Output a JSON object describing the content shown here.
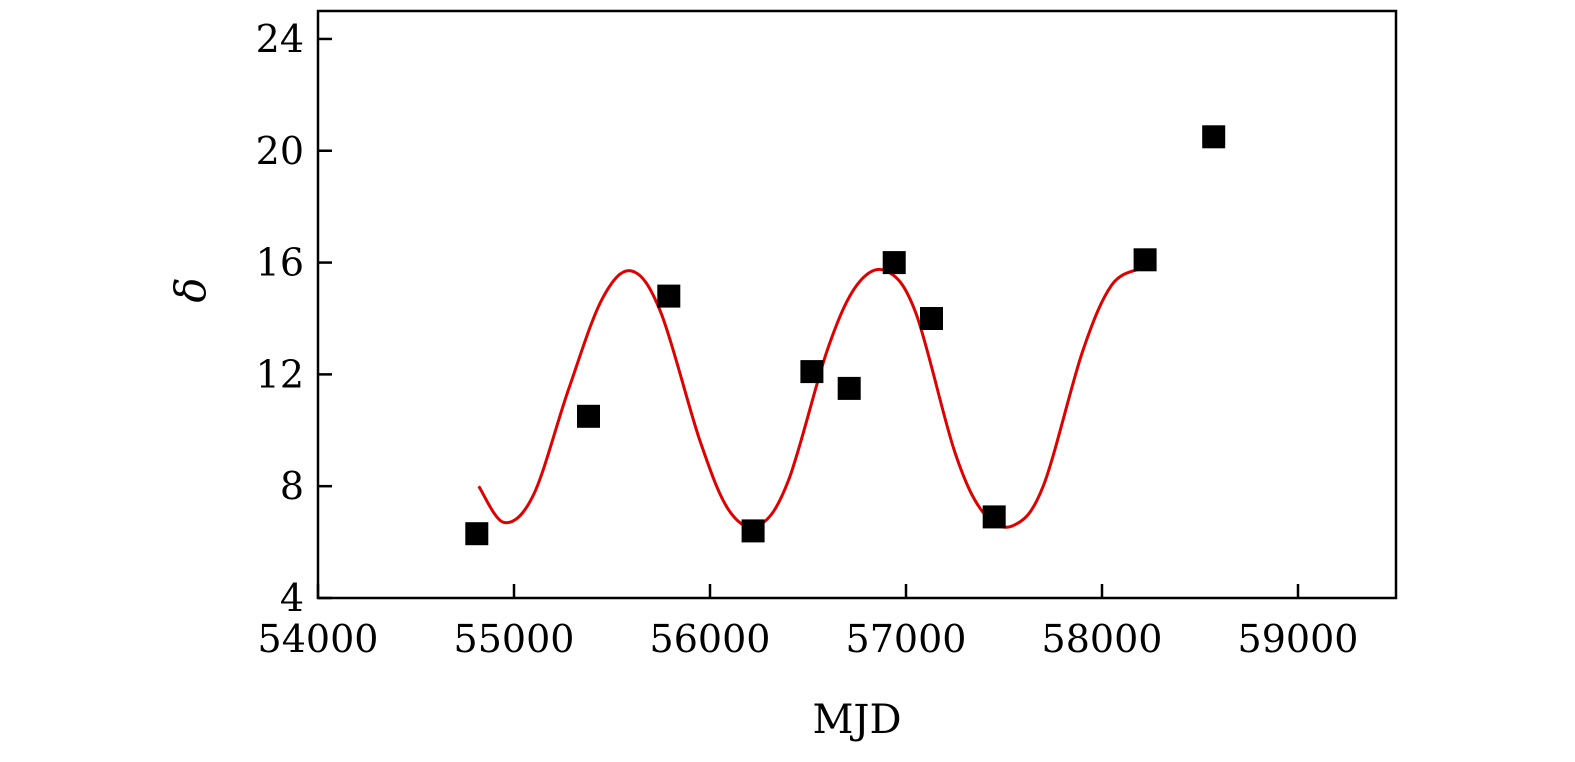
{
  "chart_data": {
    "type": "scatter",
    "title": "",
    "xlabel": "MJD",
    "ylabel": "δ",
    "xlim": [
      54000,
      59500
    ],
    "ylim": [
      4,
      25
    ],
    "xticks": [
      54000,
      55000,
      56000,
      57000,
      58000,
      59000
    ],
    "yticks": [
      4,
      8,
      12,
      16,
      20,
      24
    ],
    "xtick_labels": [
      "54000",
      "55000",
      "56000",
      "57000",
      "58000",
      "59000"
    ],
    "ytick_labels": [
      "4",
      "8",
      "12",
      "16",
      "20",
      "24"
    ],
    "grid": false,
    "legend": "none",
    "series": [
      {
        "type": "scatter",
        "marker": "square",
        "color": "#000000",
        "x": [
          54810,
          55380,
          55790,
          56220,
          56520,
          56710,
          56940,
          57130,
          57450,
          58220,
          58570
        ],
        "y": [
          6.3,
          10.5,
          14.8,
          6.4,
          12.1,
          11.5,
          16.0,
          14.0,
          6.9,
          16.1,
          20.5
        ]
      },
      {
        "type": "line",
        "color": "#e00000",
        "x": [
          54820,
          54950,
          55100,
          55280,
          55450,
          55600,
          55750,
          55950,
          56100,
          56250,
          56400,
          56600,
          56750,
          56900,
          57050,
          57250,
          57400,
          57550,
          57700,
          57900,
          58050,
          58200
        ],
        "y": [
          8.0,
          6.7,
          7.7,
          11.5,
          14.7,
          15.7,
          14.2,
          9.6,
          7.1,
          6.6,
          8.2,
          12.9,
          15.2,
          15.7,
          14.2,
          9.2,
          7.0,
          6.6,
          8.0,
          12.8,
          15.2,
          15.8
        ]
      }
    ]
  }
}
